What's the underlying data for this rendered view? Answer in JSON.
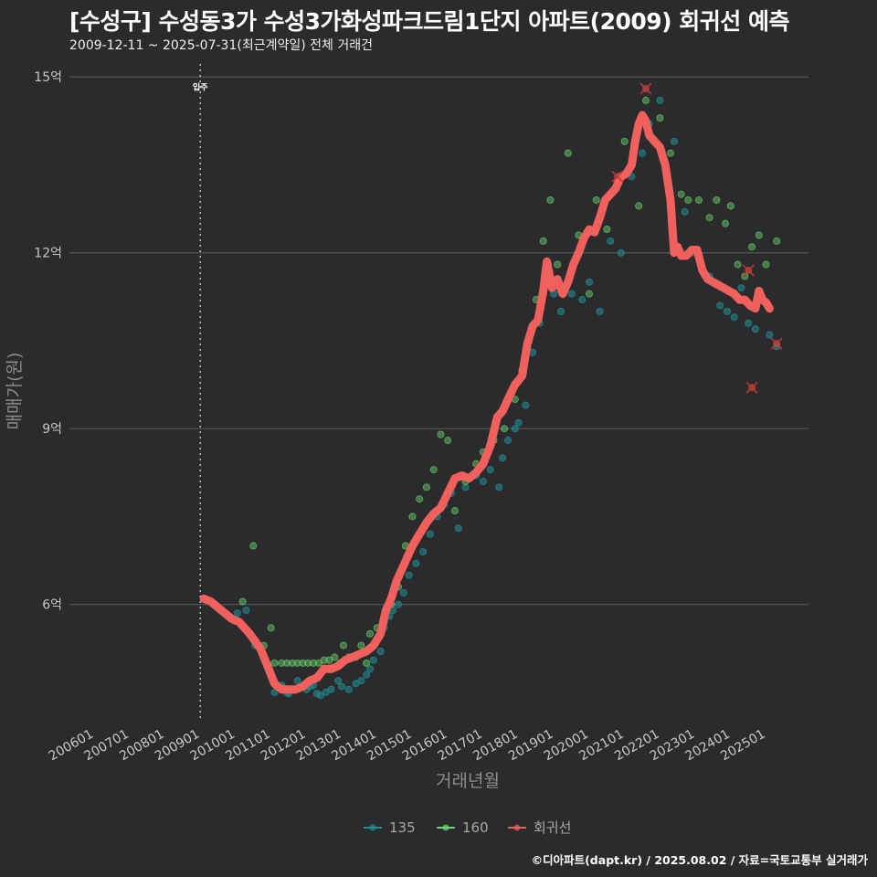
{
  "title": "[수성구] 수성동3가 수성3가화성파크드림1단지 아파트(2009) 회귀선 예측",
  "subtitle": "2009-12-11 ~ 2025-07-31(최근계약일) 전체 거래건",
  "caption": "©디아파트(dapt.kr) / 2025.08.02 / 자료=국토교통부 실거래가",
  "colors": {
    "s135": "#1f8f96",
    "s160": "#6bd66b",
    "regression": "#f0605c",
    "grid": "#555555",
    "background": "#2b2b2d"
  },
  "chart_data": {
    "type": "scatter",
    "xlabel": "거래년월",
    "ylabel": "매매가(원)",
    "x_range": [
      2005.3,
      2026.2
    ],
    "y_range": [
      4.0,
      15.3
    ],
    "x_ticks": [
      "200601",
      "200701",
      "200801",
      "200901",
      "201001",
      "201101",
      "201201",
      "201301",
      "201401",
      "201501",
      "201601",
      "201701",
      "201801",
      "201901",
      "202001",
      "202101",
      "202201",
      "202301",
      "202401",
      "202501"
    ],
    "y_ticks": [
      {
        "value": 6,
        "label": "6억"
      },
      {
        "value": 9,
        "label": "9억"
      },
      {
        "value": 12,
        "label": "12억"
      },
      {
        "value": 15,
        "label": "15억"
      }
    ],
    "annotation": {
      "x": 2009.0,
      "label": "입주"
    },
    "legend_position": "bottom",
    "legend": [
      "135",
      "160",
      "회귀선"
    ],
    "series": [
      {
        "name": "135",
        "type": "scatter",
        "points": [
          [
            2010.05,
            5.85
          ],
          [
            2010.3,
            5.9
          ],
          [
            2010.55,
            5.3
          ],
          [
            2010.9,
            5.0
          ],
          [
            2011.1,
            4.5
          ],
          [
            2011.2,
            4.6
          ],
          [
            2011.3,
            4.62
          ],
          [
            2011.35,
            4.58
          ],
          [
            2011.45,
            4.5
          ],
          [
            2011.5,
            4.48
          ],
          [
            2011.65,
            4.55
          ],
          [
            2011.75,
            4.7
          ],
          [
            2011.9,
            4.6
          ],
          [
            2012.0,
            4.55
          ],
          [
            2012.1,
            4.6
          ],
          [
            2012.2,
            4.62
          ],
          [
            2012.3,
            4.48
          ],
          [
            2012.4,
            4.45
          ],
          [
            2012.55,
            4.5
          ],
          [
            2012.7,
            4.55
          ],
          [
            2012.9,
            4.7
          ],
          [
            2013.0,
            4.6
          ],
          [
            2013.2,
            4.55
          ],
          [
            2013.4,
            4.65
          ],
          [
            2013.55,
            4.7
          ],
          [
            2013.7,
            4.8
          ],
          [
            2013.8,
            4.9
          ],
          [
            2013.9,
            5.05
          ],
          [
            2014.1,
            5.2
          ],
          [
            2014.2,
            5.6
          ],
          [
            2014.35,
            5.8
          ],
          [
            2014.45,
            5.9
          ],
          [
            2014.6,
            6.0
          ],
          [
            2014.75,
            6.2
          ],
          [
            2014.9,
            6.5
          ],
          [
            2015.1,
            6.7
          ],
          [
            2015.3,
            6.9
          ],
          [
            2015.5,
            7.2
          ],
          [
            2015.7,
            7.5
          ],
          [
            2015.9,
            7.7
          ],
          [
            2016.1,
            7.9
          ],
          [
            2016.3,
            7.3
          ],
          [
            2016.5,
            8.0
          ],
          [
            2016.8,
            8.2
          ],
          [
            2017.0,
            8.1
          ],
          [
            2017.2,
            8.3
          ],
          [
            2017.45,
            8.0
          ],
          [
            2017.55,
            8.5
          ],
          [
            2017.7,
            8.8
          ],
          [
            2017.9,
            9.0
          ],
          [
            2018.0,
            9.1
          ],
          [
            2018.2,
            9.4
          ],
          [
            2018.4,
            10.3
          ],
          [
            2018.6,
            10.8
          ],
          [
            2018.8,
            11.5
          ],
          [
            2019.0,
            11.3
          ],
          [
            2019.2,
            11.0
          ],
          [
            2019.5,
            11.3
          ],
          [
            2019.8,
            11.2
          ],
          [
            2020.0,
            11.5
          ],
          [
            2020.3,
            11.0
          ],
          [
            2020.6,
            12.2
          ],
          [
            2020.9,
            12.0
          ],
          [
            2021.2,
            13.3
          ],
          [
            2021.5,
            13.7
          ],
          [
            2021.7,
            14.2
          ],
          [
            2022.0,
            14.6
          ],
          [
            2022.4,
            13.9
          ],
          [
            2022.7,
            12.7
          ],
          [
            2022.9,
            12.0
          ],
          [
            2023.1,
            11.9
          ],
          [
            2023.4,
            11.6
          ],
          [
            2023.7,
            11.1
          ],
          [
            2023.9,
            11.0
          ],
          [
            2024.1,
            10.9
          ],
          [
            2024.3,
            11.4
          ],
          [
            2024.5,
            10.8
          ],
          [
            2024.7,
            10.7
          ],
          [
            2024.9,
            11.2
          ],
          [
            2025.1,
            10.6
          ],
          [
            2025.3,
            10.4
          ]
        ]
      },
      {
        "name": "160",
        "type": "scatter",
        "points": [
          [
            2010.2,
            6.05
          ],
          [
            2010.5,
            7.0
          ],
          [
            2010.8,
            5.3
          ],
          [
            2011.0,
            5.6
          ],
          [
            2011.1,
            5.0
          ],
          [
            2011.3,
            5.0
          ],
          [
            2011.45,
            5.0
          ],
          [
            2011.6,
            5.0
          ],
          [
            2011.75,
            5.0
          ],
          [
            2011.9,
            5.0
          ],
          [
            2012.05,
            5.0
          ],
          [
            2012.2,
            5.0
          ],
          [
            2012.35,
            5.0
          ],
          [
            2012.5,
            5.05
          ],
          [
            2012.65,
            5.05
          ],
          [
            2012.8,
            5.1
          ],
          [
            2012.95,
            5.0
          ],
          [
            2013.05,
            5.3
          ],
          [
            2013.2,
            5.1
          ],
          [
            2013.4,
            5.1
          ],
          [
            2013.55,
            5.3
          ],
          [
            2013.7,
            5.0
          ],
          [
            2013.8,
            5.5
          ],
          [
            2014.0,
            5.6
          ],
          [
            2014.2,
            5.7
          ],
          [
            2014.4,
            6.0
          ],
          [
            2014.6,
            6.3
          ],
          [
            2014.8,
            7.0
          ],
          [
            2015.0,
            7.5
          ],
          [
            2015.2,
            7.8
          ],
          [
            2015.4,
            8.0
          ],
          [
            2015.6,
            8.3
          ],
          [
            2015.8,
            8.9
          ],
          [
            2016.0,
            8.8
          ],
          [
            2016.2,
            7.6
          ],
          [
            2016.5,
            8.1
          ],
          [
            2016.8,
            8.4
          ],
          [
            2017.0,
            8.6
          ],
          [
            2017.3,
            8.8
          ],
          [
            2017.6,
            9.0
          ],
          [
            2017.9,
            9.5
          ],
          [
            2018.1,
            10.0
          ],
          [
            2018.3,
            10.5
          ],
          [
            2018.5,
            11.2
          ],
          [
            2018.7,
            12.2
          ],
          [
            2018.9,
            12.9
          ],
          [
            2019.1,
            11.8
          ],
          [
            2019.4,
            13.7
          ],
          [
            2019.7,
            12.3
          ],
          [
            2020.0,
            11.3
          ],
          [
            2020.2,
            12.9
          ],
          [
            2020.5,
            12.4
          ],
          [
            2020.8,
            13.2
          ],
          [
            2021.0,
            13.9
          ],
          [
            2021.4,
            12.8
          ],
          [
            2021.6,
            14.6
          ],
          [
            2022.0,
            14.3
          ],
          [
            2022.3,
            13.7
          ],
          [
            2022.6,
            13.0
          ],
          [
            2022.8,
            12.9
          ],
          [
            2023.1,
            12.9
          ],
          [
            2023.4,
            12.6
          ],
          [
            2023.6,
            12.9
          ],
          [
            2023.85,
            12.5
          ],
          [
            2024.0,
            12.8
          ],
          [
            2024.2,
            11.8
          ],
          [
            2024.4,
            11.6
          ],
          [
            2024.6,
            12.1
          ],
          [
            2024.8,
            12.3
          ],
          [
            2025.0,
            11.8
          ],
          [
            2025.3,
            12.2
          ]
        ]
      },
      {
        "name": "회귀선",
        "type": "line",
        "points": [
          [
            2009.1,
            6.1
          ],
          [
            2009.3,
            6.05
          ],
          [
            2009.6,
            5.9
          ],
          [
            2009.9,
            5.75
          ],
          [
            2010.1,
            5.7
          ],
          [
            2010.4,
            5.5
          ],
          [
            2010.7,
            5.25
          ],
          [
            2010.9,
            4.95
          ],
          [
            2011.1,
            4.65
          ],
          [
            2011.3,
            4.55
          ],
          [
            2011.5,
            4.55
          ],
          [
            2011.7,
            4.55
          ],
          [
            2011.9,
            4.6
          ],
          [
            2012.1,
            4.7
          ],
          [
            2012.3,
            4.75
          ],
          [
            2012.5,
            4.9
          ],
          [
            2012.7,
            4.9
          ],
          [
            2012.9,
            4.95
          ],
          [
            2013.1,
            5.05
          ],
          [
            2013.3,
            5.1
          ],
          [
            2013.5,
            5.15
          ],
          [
            2013.7,
            5.2
          ],
          [
            2013.9,
            5.3
          ],
          [
            2014.1,
            5.5
          ],
          [
            2014.25,
            5.9
          ],
          [
            2014.4,
            6.1
          ],
          [
            2014.55,
            6.4
          ],
          [
            2014.7,
            6.6
          ],
          [
            2014.85,
            6.8
          ],
          [
            2015.0,
            7.0
          ],
          [
            2015.2,
            7.2
          ],
          [
            2015.4,
            7.4
          ],
          [
            2015.6,
            7.55
          ],
          [
            2015.8,
            7.65
          ],
          [
            2016.0,
            7.9
          ],
          [
            2016.2,
            8.15
          ],
          [
            2016.4,
            8.2
          ],
          [
            2016.6,
            8.15
          ],
          [
            2016.8,
            8.25
          ],
          [
            2017.0,
            8.4
          ],
          [
            2017.2,
            8.7
          ],
          [
            2017.4,
            9.2
          ],
          [
            2017.55,
            9.3
          ],
          [
            2017.7,
            9.5
          ],
          [
            2017.9,
            9.75
          ],
          [
            2018.1,
            9.9
          ],
          [
            2018.25,
            10.45
          ],
          [
            2018.4,
            10.75
          ],
          [
            2018.55,
            10.85
          ],
          [
            2018.7,
            11.35
          ],
          [
            2018.8,
            11.85
          ],
          [
            2018.95,
            11.4
          ],
          [
            2019.1,
            11.55
          ],
          [
            2019.25,
            11.3
          ],
          [
            2019.4,
            11.5
          ],
          [
            2019.55,
            11.8
          ],
          [
            2019.7,
            12.0
          ],
          [
            2019.85,
            12.25
          ],
          [
            2020.0,
            12.4
          ],
          [
            2020.15,
            12.35
          ],
          [
            2020.3,
            12.6
          ],
          [
            2020.45,
            12.9
          ],
          [
            2020.6,
            13.0
          ],
          [
            2020.75,
            13.1
          ],
          [
            2020.9,
            13.3
          ],
          [
            2021.05,
            13.35
          ],
          [
            2021.2,
            13.5
          ],
          [
            2021.3,
            13.9
          ],
          [
            2021.4,
            14.2
          ],
          [
            2021.5,
            14.35
          ],
          [
            2021.6,
            14.25
          ],
          [
            2021.7,
            14.0
          ],
          [
            2021.85,
            13.9
          ],
          [
            2022.0,
            13.8
          ],
          [
            2022.15,
            13.5
          ],
          [
            2022.3,
            12.9
          ],
          [
            2022.4,
            12.0
          ],
          [
            2022.5,
            12.1
          ],
          [
            2022.6,
            11.95
          ],
          [
            2022.75,
            11.95
          ],
          [
            2022.9,
            12.05
          ],
          [
            2023.05,
            12.05
          ],
          [
            2023.2,
            11.7
          ],
          [
            2023.35,
            11.55
          ],
          [
            2023.5,
            11.5
          ],
          [
            2023.65,
            11.45
          ],
          [
            2023.8,
            11.4
          ],
          [
            2023.95,
            11.35
          ],
          [
            2024.1,
            11.3
          ],
          [
            2024.25,
            11.2
          ],
          [
            2024.4,
            11.2
          ],
          [
            2024.55,
            11.1
          ],
          [
            2024.7,
            11.05
          ],
          [
            2024.8,
            11.35
          ],
          [
            2024.9,
            11.2
          ],
          [
            2025.0,
            11.15
          ],
          [
            2025.1,
            11.05
          ]
        ]
      },
      {
        "name": "회귀선-outliers",
        "type": "scatter",
        "points": [
          [
            2020.8,
            13.3
          ],
          [
            2021.6,
            14.8
          ],
          [
            2024.5,
            11.7
          ],
          [
            2024.6,
            9.7
          ],
          [
            2025.3,
            10.45
          ]
        ]
      }
    ]
  }
}
